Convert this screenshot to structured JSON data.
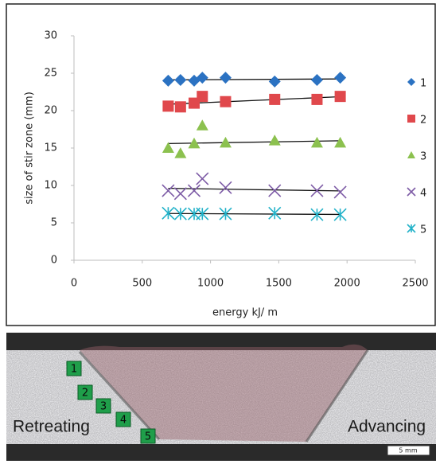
{
  "chart_data": {
    "type": "scatter",
    "xlabel": "energy kJ/ m",
    "ylabel": "size of stir zone (mm)",
    "xlim": [
      0,
      2500
    ],
    "xticks": [
      0,
      500,
      1000,
      1500,
      2000,
      2500
    ],
    "ylim": [
      0,
      30
    ],
    "yticks": [
      0,
      5,
      10,
      15,
      20,
      25,
      30
    ],
    "grid": false,
    "trendline": true,
    "legend": "right",
    "x": [
      690,
      780,
      880,
      940,
      1110,
      1470,
      1780,
      1950
    ],
    "series": [
      {
        "name": "1",
        "color": "#2b72c2",
        "marker": "diamond",
        "values": [
          24.0,
          24.1,
          24.0,
          24.4,
          24.4,
          23.9,
          24.1,
          24.4
        ]
      },
      {
        "name": "2",
        "color": "#e0484c",
        "marker": "square",
        "values": [
          20.6,
          20.5,
          21.0,
          21.9,
          21.2,
          21.5,
          21.5,
          21.9
        ]
      },
      {
        "name": "3",
        "color": "#8cc14f",
        "marker": "triangle",
        "values": [
          15.0,
          14.3,
          15.6,
          18.0,
          15.7,
          16.0,
          15.7,
          15.7
        ]
      },
      {
        "name": "4",
        "color": "#7d5ba6",
        "marker": "cross",
        "values": [
          9.3,
          8.9,
          9.3,
          10.9,
          9.7,
          9.3,
          9.3,
          9.1
        ]
      },
      {
        "name": "5",
        "color": "#22b2c9",
        "marker": "asterisk",
        "values": [
          6.3,
          6.2,
          6.2,
          6.2,
          6.2,
          6.3,
          6.1,
          6.1
        ]
      }
    ]
  },
  "photo": {
    "zone_labels": [
      "1",
      "2",
      "3",
      "4",
      "5"
    ],
    "retreating": "Retreating",
    "advancing": "Advancing",
    "scale": "5 mm"
  }
}
